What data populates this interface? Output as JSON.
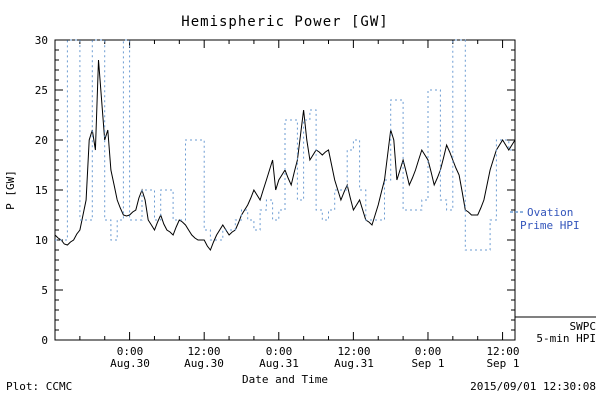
{
  "chart_data": {
    "type": "line",
    "title": "Hemispheric Power [GW]",
    "xlabel": "Date and Time",
    "ylabel": "P [GW]",
    "ylim": [
      0,
      30
    ],
    "x_range_hours": [
      0,
      74
    ],
    "grid": false,
    "y_ticks": [
      "0",
      "5",
      "10",
      "15",
      "20",
      "25",
      "30"
    ],
    "x_ticks": [
      {
        "time": "0:00",
        "date": "Aug.30",
        "t": 12
      },
      {
        "time": "12:00",
        "date": "Aug.30",
        "t": 24
      },
      {
        "time": "0:00",
        "date": "Aug.31",
        "t": 36
      },
      {
        "time": "12:00",
        "date": "Aug.31",
        "t": 48
      },
      {
        "time": "0:00",
        "date": "Sep 1",
        "t": 60
      },
      {
        "time": "12:00",
        "date": "Sep 1",
        "t": 72
      }
    ],
    "series": [
      {
        "name": "SWPC 5-min HPI",
        "color": "#000000",
        "style": "solid",
        "step": false,
        "dt": 0.5,
        "values": [
          10.5,
          10.2,
          10.0,
          9.6,
          9.5,
          9.8,
          10.0,
          10.6,
          11.0,
          12.5,
          14.0,
          20.0,
          21.0,
          19.0,
          28.0,
          24.0,
          20.0,
          21.0,
          17.0,
          15.5,
          14.0,
          13.2,
          12.5,
          12.4,
          12.5,
          12.8,
          13.0,
          14.2,
          15.0,
          14.0,
          12.0,
          11.5,
          11.0,
          11.8,
          12.5,
          11.6,
          11.0,
          10.8,
          10.5,
          11.3,
          12.0,
          11.8,
          11.5,
          11.0,
          10.5,
          10.2,
          10.0,
          10.0,
          10.0,
          9.4,
          9.0,
          9.8,
          10.5,
          11.0,
          11.5,
          11.0,
          10.5,
          10.8,
          11.0,
          11.7,
          12.5,
          13.0,
          13.5,
          14.2,
          15.0,
          14.5,
          14.0,
          15.0,
          16.0,
          17.0,
          18.0,
          15.0,
          16.0,
          16.5,
          17.0,
          16.2,
          15.5,
          16.8,
          18.0,
          20.5,
          23.0,
          20.0,
          18.0,
          18.5,
          19.0,
          18.8,
          18.5,
          18.8,
          19.0,
          17.5,
          16.0,
          15.0,
          14.0,
          14.8,
          15.5,
          14.2,
          13.0,
          13.5,
          14.0,
          13.0,
          12.0,
          11.8,
          11.5,
          12.5,
          13.5,
          14.8,
          16.0,
          18.5,
          21.0,
          20.0,
          16.0,
          17.0,
          18.0,
          16.8,
          15.5,
          16.2,
          17.0,
          18.0,
          19.0,
          18.5,
          18.0,
          16.8,
          15.5,
          16.2,
          17.0,
          18.2,
          19.5,
          18.8,
          18.0,
          17.2,
          16.5,
          14.8,
          13.0,
          12.8,
          12.5,
          12.5,
          12.5,
          13.2,
          14.0,
          15.5,
          17.0,
          18.0,
          19.0,
          19.5,
          20.0,
          19.5,
          19.0,
          19.5,
          20.0
        ]
      },
      {
        "name": "Ovation Prime HPI",
        "color": "#6b9bd2",
        "style": "dotted",
        "step": true,
        "dt": 1,
        "values": [
          10,
          10,
          30,
          30,
          12,
          12,
          30,
          30,
          12,
          10,
          12,
          30,
          12,
          12,
          15,
          15,
          12,
          15,
          15,
          12,
          12,
          20,
          20,
          20,
          11,
          10,
          10,
          11,
          11,
          12,
          13,
          12,
          11,
          13,
          14,
          12,
          13,
          22,
          22,
          14,
          22,
          23,
          13,
          12,
          13,
          15,
          15,
          19,
          20,
          15,
          12,
          12,
          12,
          16,
          24,
          24,
          13,
          13,
          13,
          14,
          25,
          25,
          14,
          13,
          30,
          30,
          9,
          9,
          9,
          9,
          12,
          20,
          20,
          19,
          19
        ]
      }
    ],
    "legend": {
      "ovation": {
        "line1": "Ovation",
        "line2": "Prime HPI",
        "text_color": "#3355bb",
        "line_color": "#6b9bd2"
      },
      "swpc": {
        "line1": "SWPC",
        "line2": "5-min HPI",
        "text_color": "#000000",
        "line_color": "#000000"
      }
    }
  },
  "footer": {
    "left": "Plot: CCMC",
    "right": "2015/09/01 12:30:08"
  }
}
